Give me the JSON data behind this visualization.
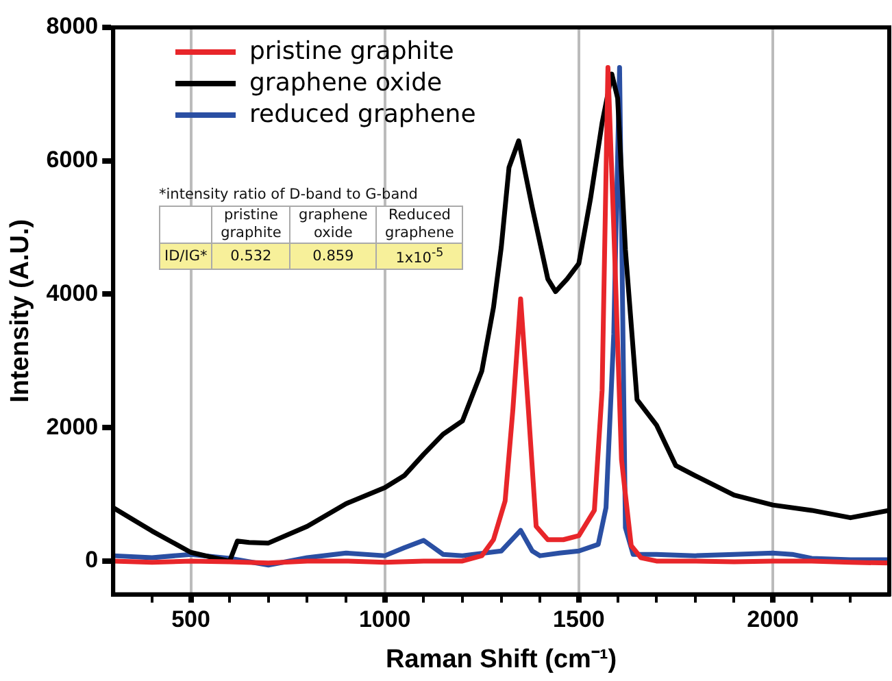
{
  "chart_data": {
    "type": "line",
    "xlabel": "Raman Shift (cm⁻¹)",
    "ylabel": "Intensity (A.U.)",
    "xlim": [
      300,
      2300
    ],
    "ylim": [
      -500,
      8000
    ],
    "xticks": [
      {
        "value": 400,
        "label": null
      },
      500,
      {
        "value": 600,
        "label": null
      },
      {
        "value": 700,
        "label": null
      },
      {
        "value": 800,
        "label": null
      },
      {
        "value": 900,
        "label": null
      },
      1000,
      {
        "value": 1100,
        "label": null
      },
      {
        "value": 1200,
        "label": null
      },
      {
        "value": 1300,
        "label": null
      },
      {
        "value": 1400,
        "label": null
      },
      1500,
      {
        "value": 1600,
        "label": null
      },
      {
        "value": 1700,
        "label": null
      },
      {
        "value": 1800,
        "label": null
      },
      {
        "value": 1900,
        "label": null
      },
      2000,
      {
        "value": 2100,
        "label": null
      },
      {
        "value": 2200,
        "label": null
      }
    ],
    "yticks": [
      0,
      2000,
      4000,
      6000,
      8000
    ],
    "grid": "x",
    "legend": "top left",
    "marker": "none",
    "line_style": "solid",
    "annotations": [
      "*intensity ratio of D-band to G-band",
      "pristine graphite",
      "graphene oxide",
      "Reduced graphene",
      "ID/IG*",
      "0.532",
      "0.859",
      "1x10$^{-5}$"
    ],
    "series": [
      {
        "name": "pristine graphite",
        "color": "#e8262a",
        "x": [
          300,
          400,
          500,
          600,
          700,
          800,
          900,
          1000,
          1100,
          1200,
          1250,
          1280,
          1310,
          1330,
          1350,
          1370,
          1390,
          1420,
          1460,
          1500,
          1540,
          1560,
          1575,
          1590,
          1610,
          1620,
          1635,
          1660,
          1700,
          1800,
          1900,
          2000,
          2100,
          2200,
          2300
        ],
        "values": [
          0,
          -20,
          0,
          -10,
          -30,
          0,
          0,
          -20,
          0,
          0,
          80,
          320,
          900,
          2270,
          3930,
          2270,
          520,
          320,
          320,
          380,
          760,
          2560,
          7400,
          5000,
          1520,
          1000,
          230,
          50,
          0,
          0,
          -10,
          0,
          0,
          -20,
          -30
        ]
      },
      {
        "name": "graphene oxide",
        "color": "#000000",
        "x": [
          300,
          400,
          500,
          560,
          600,
          620,
          650,
          700,
          800,
          900,
          1000,
          1050,
          1100,
          1150,
          1200,
          1250,
          1280,
          1300,
          1320,
          1345,
          1380,
          1420,
          1440,
          1470,
          1500,
          1530,
          1560,
          1585,
          1600,
          1620,
          1650,
          1700,
          1750,
          1800,
          1900,
          2000,
          2100,
          2200,
          2300
        ],
        "values": [
          800,
          450,
          130,
          50,
          0,
          300,
          280,
          270,
          520,
          860,
          1100,
          1280,
          1600,
          1900,
          2100,
          2850,
          3800,
          4700,
          5900,
          6300,
          5300,
          4230,
          4040,
          4230,
          4460,
          5430,
          6570,
          7300,
          6940,
          4670,
          2420,
          2040,
          1430,
          1280,
          990,
          840,
          760,
          650,
          760
        ]
      },
      {
        "name": "reduced graphene",
        "color": "#2a4fa3",
        "x": [
          300,
          400,
          500,
          600,
          700,
          800,
          900,
          1000,
          1050,
          1100,
          1150,
          1200,
          1300,
          1350,
          1380,
          1400,
          1450,
          1500,
          1550,
          1570,
          1590,
          1605,
          1620,
          1640,
          1700,
          1800,
          1900,
          2000,
          2050,
          2100,
          2200,
          2300
        ],
        "values": [
          80,
          50,
          100,
          40,
          -60,
          50,
          120,
          80,
          200,
          310,
          100,
          80,
          150,
          460,
          150,
          80,
          120,
          150,
          250,
          800,
          3400,
          7400,
          500,
          100,
          100,
          80,
          100,
          120,
          100,
          40,
          20,
          20
        ]
      }
    ]
  }
}
